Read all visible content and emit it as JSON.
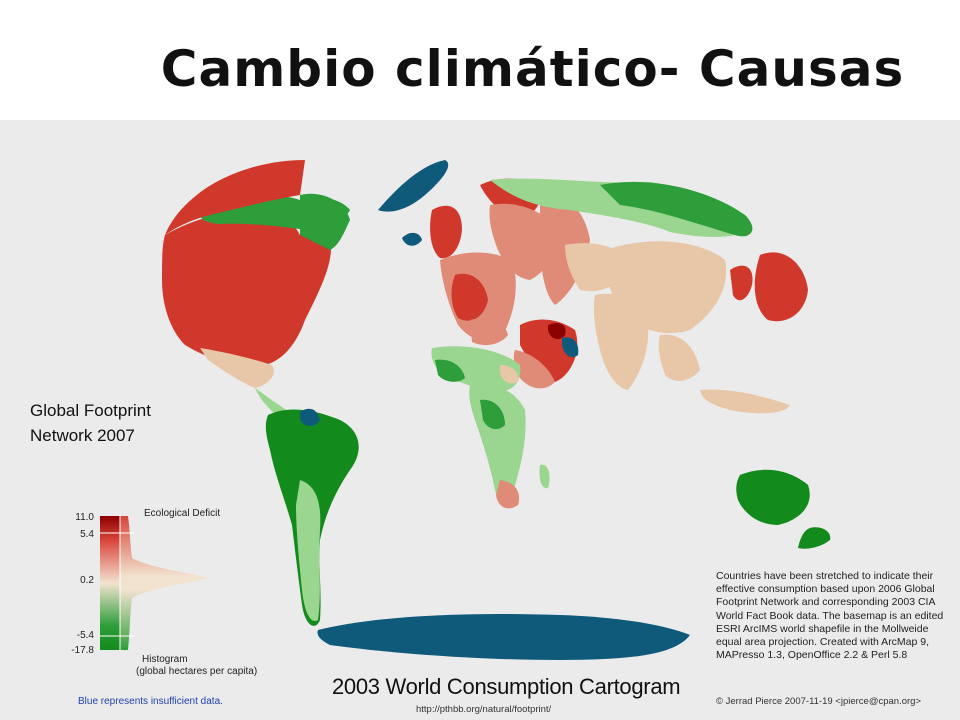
{
  "slide": {
    "title": "Cambio climático- Causas",
    "source_line1": "Global Footprint",
    "source_line2": "Network 2007"
  },
  "map": {
    "caption": "2003 World Consumption Cartogram",
    "url": "http://pthbb.org/natural/footprint/",
    "author": "© Jerrad Pierce 2007-11-19 <jpierce@cpan.org>",
    "credits": "Countries have been stretched to indicate their effective consumption based upon 2006 Global Footprint Network and corresponding 2003 CIA World Fact Book data. The basemap is an edited ESRI ArcIMS world shapefile in the Mollweide equal area projection. Created with ArcMap 9, MAPresso 1.3, OpenOffice 2.2 & Perl 5.8",
    "colors": {
      "deficit_high": "#8b0000",
      "deficit": "#d8453a",
      "deficit_mid": "#e08a78",
      "neutral": "#e8c7a8",
      "reserve_light": "#9ad68f",
      "reserve": "#2e9e3a",
      "reserve_high": "#138a1c",
      "insufficient": "#0f5a7a",
      "background": "#ebebeb"
    }
  },
  "legend": {
    "title": "Ecological Deficit",
    "ticks": [
      "11.0",
      "5.4",
      "0.2",
      "-5.4",
      "-17.8"
    ],
    "histogram_label_line1": "Histogram",
    "histogram_label_line2": "(global hectares per capita)",
    "blue_note": "Blue represents insufficient data."
  }
}
